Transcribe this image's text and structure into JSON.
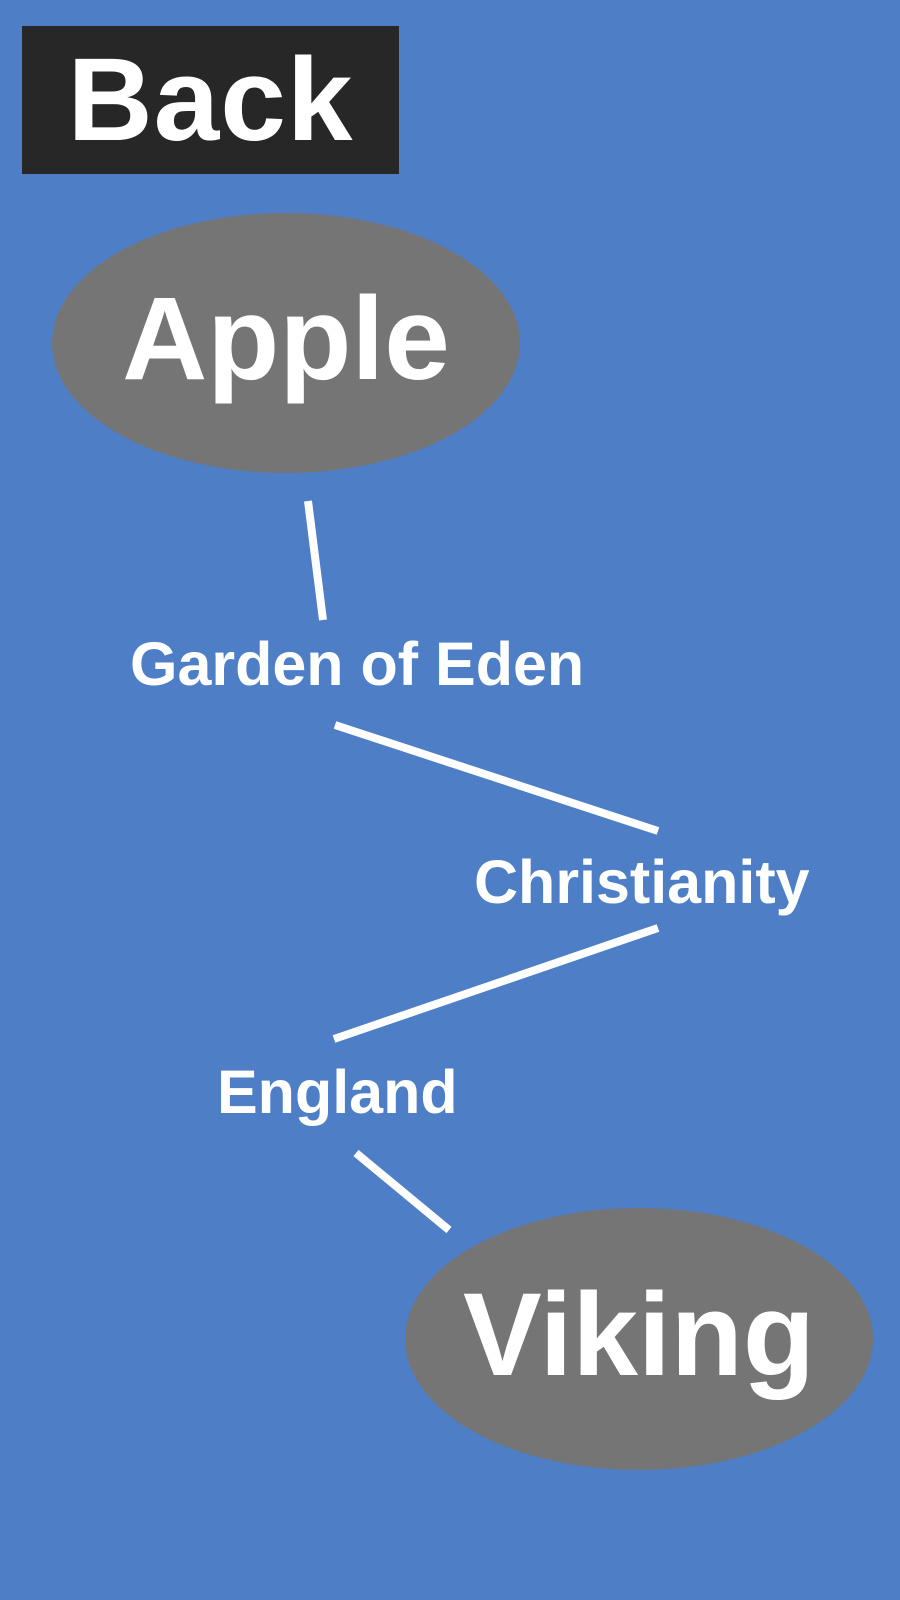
{
  "back_button": {
    "label": "Back"
  },
  "chain": {
    "start": "Apple",
    "steps": [
      "Garden of Eden",
      "Christianity",
      "England"
    ],
    "end": "Viking"
  },
  "colors": {
    "background": "#4d7ec6",
    "back_button": "#272727",
    "endpoint_bubble": "#757575",
    "text": "#ffffff",
    "connector": "#ffffff"
  }
}
